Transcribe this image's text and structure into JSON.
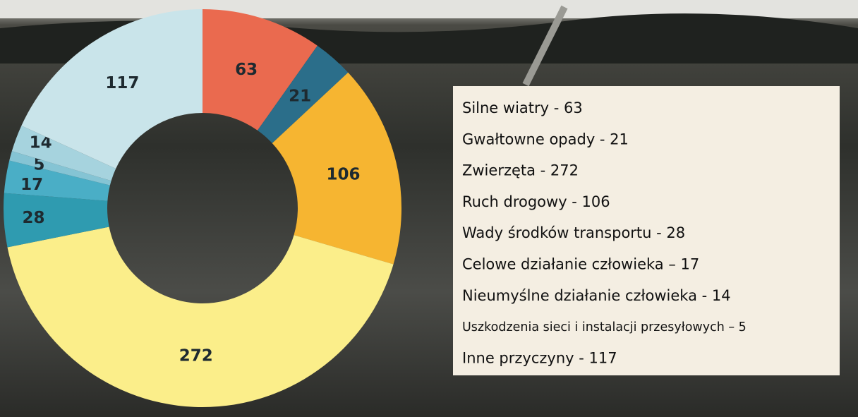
{
  "chart_data": {
    "type": "donut",
    "categories": [
      "Silne wiatry - 63",
      "Gwałtowne opady - 21",
      "Zwierzęta - 272",
      "Ruch drogowy - 106",
      "Wady środków transportu - 28",
      "Celowe działanie człowieka – 17",
      "Nieumyślne działanie człowieka - 14",
      "Uszkodzenia sieci i instalacji przesyłowych – 5",
      "Inne przyczyny - 117"
    ],
    "values": [
      63,
      21,
      272,
      106,
      28,
      17,
      14,
      5,
      117
    ],
    "colors": [
      "#ea6a4f",
      "#2b6e8a",
      "#fbee8a",
      "#f6b531",
      "#2f9bb0",
      "#4aaec6",
      "#a6d3de",
      "#85c4d4",
      "#c9e4ea"
    ]
  }
}
